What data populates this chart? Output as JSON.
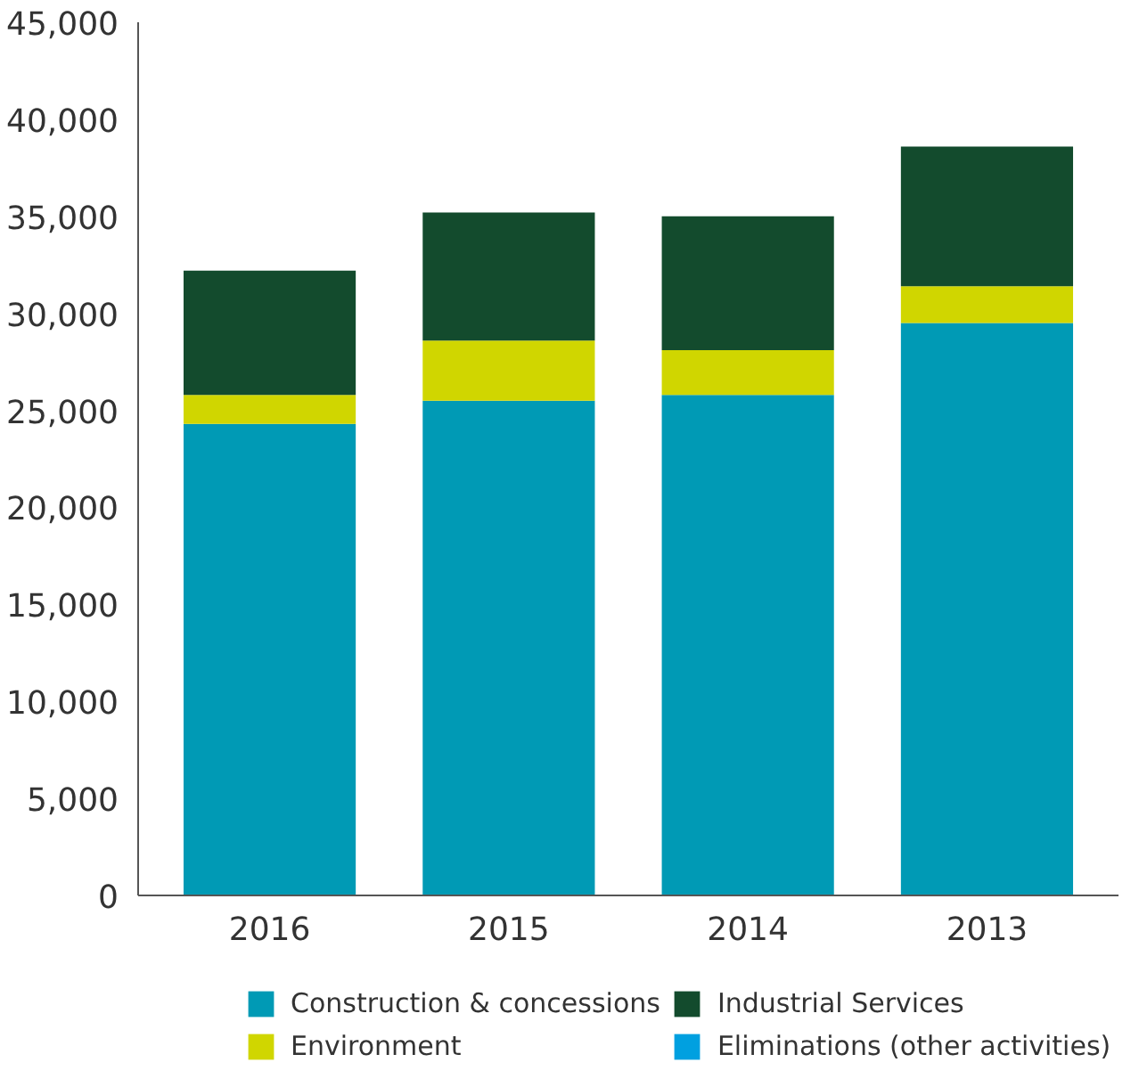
{
  "chart_data": {
    "type": "bar",
    "stacked": true,
    "categories": [
      "2016",
      "2015",
      "2014",
      "2013"
    ],
    "series": [
      {
        "name": "Construction & concessions",
        "color": "#009ab5",
        "values": [
          24300,
          25500,
          25800,
          29500
        ]
      },
      {
        "name": "Environment",
        "color": "#d0d600",
        "values": [
          1500,
          3100,
          2300,
          1900
        ]
      },
      {
        "name": "Industrial Services",
        "color": "#134b2d",
        "values": [
          6400,
          6600,
          6900,
          7200
        ]
      },
      {
        "name": "Eliminations (other activities)",
        "color": "#00a0e0",
        "values": [
          null,
          null,
          null,
          null
        ]
      }
    ],
    "ylim": [
      0,
      45000
    ],
    "yticks": [
      {
        "value": 0,
        "label": "0"
      },
      {
        "value": 5000,
        "label": "5,000"
      },
      {
        "value": 10000,
        "label": "10,000"
      },
      {
        "value": 15000,
        "label": "15,000"
      },
      {
        "value": 20000,
        "label": "20,000"
      },
      {
        "value": 25000,
        "label": "25,000"
      },
      {
        "value": 30000,
        "label": "30,000"
      },
      {
        "value": 35000,
        "label": "35,000"
      },
      {
        "value": 40000,
        "label": "40,000"
      },
      {
        "value": 45000,
        "label": "45,000"
      }
    ],
    "grid": false,
    "legend": "bottom"
  }
}
